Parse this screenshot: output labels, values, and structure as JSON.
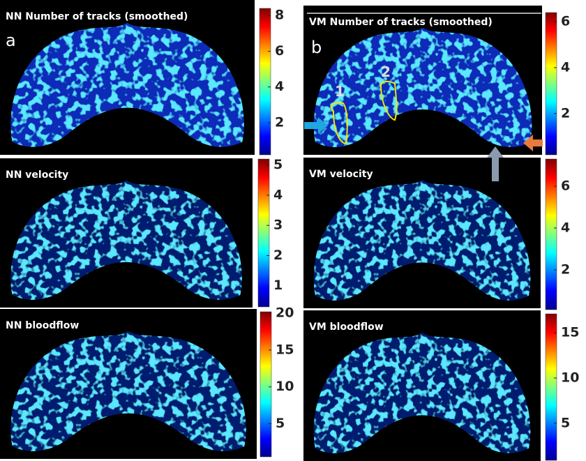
{
  "panels": [
    {
      "title": "NN Number of tracks (smoothed)",
      "lim": [
        0.2,
        8.4
      ],
      "ticks": [
        2,
        4,
        6,
        8
      ]
    },
    {
      "title": "NN velocity",
      "lim": [
        0.3,
        5.2
      ],
      "ticks": [
        1,
        2,
        3,
        4,
        5
      ]
    },
    {
      "title": "NN bloodflow",
      "lim": [
        0.5,
        20.2
      ],
      "ticks": [
        5,
        10,
        15,
        20
      ]
    },
    {
      "title": "VM Number of tracks (smoothed)",
      "lim": [
        0.2,
        6.4
      ],
      "ticks": [
        2,
        4,
        6
      ]
    },
    {
      "title": "VM velocity",
      "lim": [
        0.1,
        7.3
      ],
      "ticks": [
        2,
        4,
        6
      ]
    },
    {
      "title": "VM bloodflow",
      "lim": [
        0.9,
        17.1
      ],
      "ticks": [
        5,
        10,
        15
      ]
    }
  ],
  "labels": {
    "a": "a",
    "b": "b",
    "roi": [
      "1",
      "2"
    ]
  }
}
